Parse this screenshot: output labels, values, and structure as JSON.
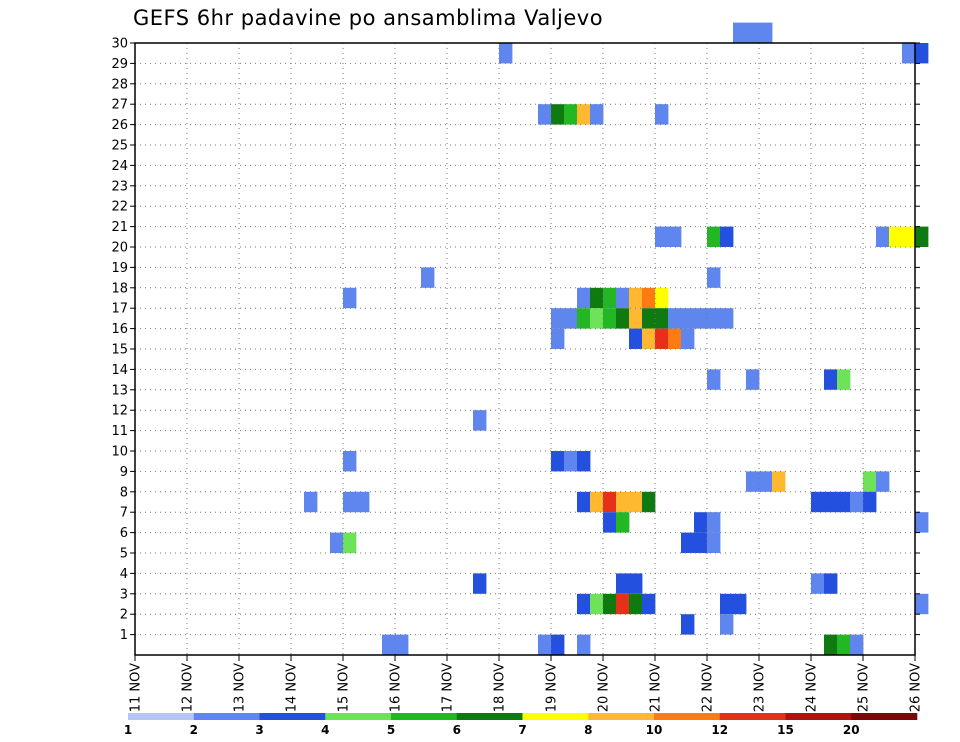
{
  "chart_data": {
    "type": "heatmap",
    "title": "GEFS 6hr padavine po ansamblima Valjevo",
    "y_ticks": [
      1,
      2,
      3,
      4,
      5,
      6,
      7,
      8,
      9,
      10,
      11,
      12,
      13,
      14,
      15,
      16,
      17,
      18,
      19,
      20,
      21,
      22,
      23,
      24,
      25,
      26,
      27,
      28,
      29,
      30
    ],
    "x_ticks": [
      "11 NOV",
      "12 NOV",
      "13 NOV",
      "14 NOV",
      "15 NOV",
      "16 NOV",
      "17 NOV",
      "18 NOV",
      "19 NOV",
      "20 NOV",
      "21 NOV",
      "22 NOV",
      "23 NOV",
      "24 NOV",
      "25 NOV",
      "26 NOV"
    ],
    "x_unit": "6-hour step from 11 NOV",
    "x_range": [
      0,
      60
    ],
    "y_range": [
      0,
      30
    ],
    "grid": true,
    "legend_labels": [
      "1",
      "2",
      "3",
      "4",
      "5",
      "6",
      "7",
      "8",
      "10",
      "12",
      "15",
      "20"
    ],
    "legend_colors": [
      "#b3c6f7",
      "#5f85ee",
      "#2450e0",
      "#6ee35a",
      "#23b823",
      "#0f7a0f",
      "#ffff00",
      "#ffb830",
      "#ff7a10",
      "#e6301a",
      "#b31010",
      "#7a0a0a"
    ],
    "cells": [
      [
        46,
        30,
        1
      ],
      [
        47,
        30,
        1
      ],
      [
        48,
        30,
        1
      ],
      [
        28,
        29,
        1
      ],
      [
        59,
        29,
        1
      ],
      [
        60,
        29,
        2
      ],
      [
        31,
        26,
        1
      ],
      [
        32,
        26,
        5
      ],
      [
        33,
        26,
        4
      ],
      [
        34,
        26,
        7
      ],
      [
        35,
        26,
        1
      ],
      [
        40,
        26,
        1
      ],
      [
        40,
        20,
        1
      ],
      [
        41,
        20,
        1
      ],
      [
        44,
        20,
        4
      ],
      [
        45,
        20,
        2
      ],
      [
        57,
        20,
        1
      ],
      [
        58,
        20,
        6
      ],
      [
        59,
        20,
        6
      ],
      [
        60,
        20,
        5
      ],
      [
        22,
        18,
        1
      ],
      [
        44,
        18,
        1
      ],
      [
        16,
        17,
        1
      ],
      [
        34,
        17,
        1
      ],
      [
        35,
        17,
        5
      ],
      [
        36,
        17,
        4
      ],
      [
        37,
        17,
        1
      ],
      [
        38,
        17,
        7
      ],
      [
        39,
        17,
        8
      ],
      [
        40,
        17,
        6
      ],
      [
        32,
        16,
        1
      ],
      [
        33,
        16,
        1
      ],
      [
        34,
        16,
        4
      ],
      [
        35,
        16,
        3
      ],
      [
        36,
        16,
        4
      ],
      [
        37,
        16,
        5
      ],
      [
        38,
        16,
        7
      ],
      [
        39,
        16,
        5
      ],
      [
        40,
        16,
        5
      ],
      [
        41,
        16,
        1
      ],
      [
        42,
        16,
        1
      ],
      [
        43,
        16,
        1
      ],
      [
        44,
        16,
        1
      ],
      [
        45,
        16,
        1
      ],
      [
        32,
        15,
        1
      ],
      [
        38,
        15,
        2
      ],
      [
        39,
        15,
        7
      ],
      [
        40,
        15,
        9
      ],
      [
        41,
        15,
        8
      ],
      [
        42,
        15,
        1
      ],
      [
        44,
        13,
        1
      ],
      [
        47,
        13,
        1
      ],
      [
        53,
        13,
        2
      ],
      [
        54,
        13,
        3
      ],
      [
        26,
        11,
        1
      ],
      [
        16,
        9,
        1
      ],
      [
        32,
        9,
        2
      ],
      [
        33,
        9,
        1
      ],
      [
        34,
        9,
        2
      ],
      [
        47,
        8,
        1
      ],
      [
        48,
        8,
        1
      ],
      [
        49,
        8,
        7
      ],
      [
        56,
        8,
        3
      ],
      [
        57,
        8,
        1
      ],
      [
        13,
        7,
        1
      ],
      [
        16,
        7,
        1
      ],
      [
        17,
        7,
        1
      ],
      [
        34,
        7,
        2
      ],
      [
        35,
        7,
        7
      ],
      [
        36,
        7,
        9
      ],
      [
        37,
        7,
        7
      ],
      [
        38,
        7,
        7
      ],
      [
        39,
        7,
        5
      ],
      [
        52,
        7,
        2
      ],
      [
        53,
        7,
        2
      ],
      [
        54,
        7,
        2
      ],
      [
        55,
        7,
        1
      ],
      [
        56,
        7,
        2
      ],
      [
        36,
        6,
        2
      ],
      [
        37,
        6,
        4
      ],
      [
        43,
        6,
        2
      ],
      [
        44,
        6,
        1
      ],
      [
        60,
        6,
        1
      ],
      [
        15,
        5,
        1
      ],
      [
        16,
        5,
        3
      ],
      [
        42,
        5,
        2
      ],
      [
        43,
        5,
        2
      ],
      [
        44,
        5,
        1
      ],
      [
        26,
        3,
        2
      ],
      [
        37,
        3,
        2
      ],
      [
        38,
        3,
        2
      ],
      [
        52,
        3,
        1
      ],
      [
        53,
        3,
        2
      ],
      [
        34,
        2,
        2
      ],
      [
        35,
        2,
        3
      ],
      [
        36,
        2,
        5
      ],
      [
        37,
        2,
        9
      ],
      [
        38,
        2,
        5
      ],
      [
        39,
        2,
        2
      ],
      [
        45,
        2,
        2
      ],
      [
        46,
        2,
        2
      ],
      [
        60,
        2,
        1
      ],
      [
        42,
        1,
        2
      ],
      [
        45,
        1,
        1
      ],
      [
        19,
        0,
        1
      ],
      [
        20,
        0,
        1
      ],
      [
        31,
        0,
        1
      ],
      [
        32,
        0,
        2
      ],
      [
        34,
        0,
        1
      ],
      [
        53,
        0,
        5
      ],
      [
        54,
        0,
        4
      ],
      [
        55,
        0,
        1
      ]
    ]
  }
}
